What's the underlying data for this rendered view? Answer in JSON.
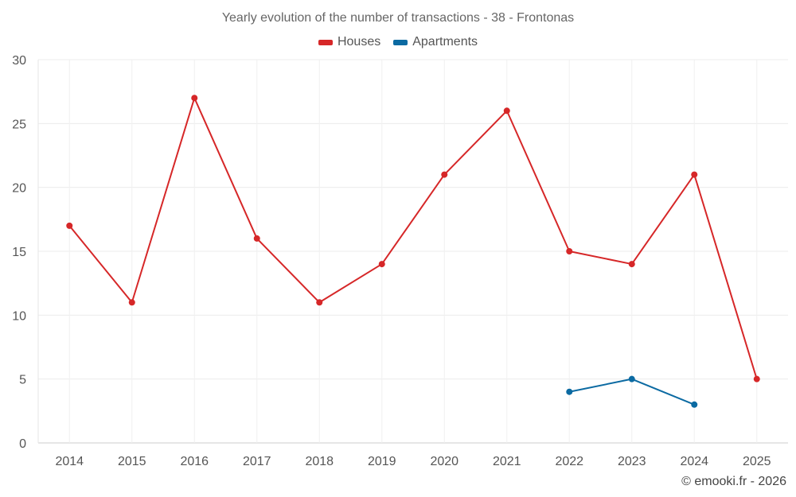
{
  "chart_data": {
    "type": "line",
    "title": "Yearly evolution of the number of transactions - 38 - Frontonas",
    "xlabel": "",
    "ylabel": "",
    "categories": [
      "2014",
      "2015",
      "2016",
      "2017",
      "2018",
      "2019",
      "2020",
      "2021",
      "2022",
      "2023",
      "2024",
      "2025"
    ],
    "ylim": [
      0,
      30
    ],
    "yticks": [
      0,
      5,
      10,
      15,
      20,
      25,
      30
    ],
    "grid": true,
    "legend_position": "top-center",
    "series": [
      {
        "name": "Houses",
        "color": "#d62728",
        "values": [
          17,
          11,
          27,
          16,
          11,
          14,
          21,
          26,
          15,
          14,
          21,
          5
        ]
      },
      {
        "name": "Apartments",
        "color": "#0b6aa2",
        "values": [
          null,
          null,
          null,
          null,
          null,
          null,
          null,
          null,
          4,
          5,
          3,
          null
        ]
      }
    ]
  },
  "credit": "© emooki.fr - 2026"
}
